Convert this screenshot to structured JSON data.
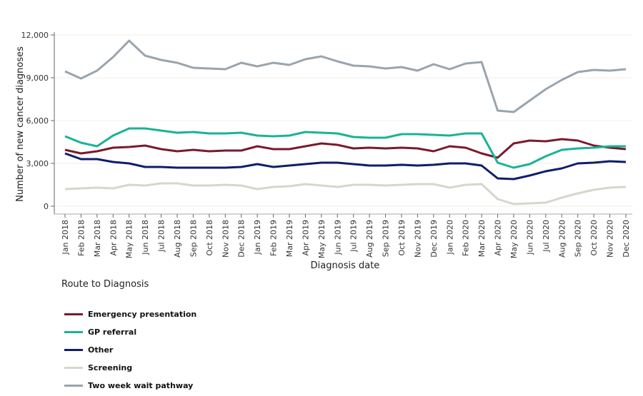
{
  "chart_data": {
    "type": "line",
    "xlabel": "Diagnosis date",
    "ylabel": "Number of new cancer diagnoses",
    "ylim": [
      0,
      12000
    ],
    "yticks": [
      "0",
      "3,000",
      "6,000",
      "9,000",
      "12,000"
    ],
    "grid": true,
    "legend_title": "Route to Diagnosis",
    "legend_position": "bottom-left",
    "x": [
      "Jan 2018",
      "Feb 2018",
      "Mar 2018",
      "Apr 2018",
      "May 2018",
      "Jun 2018",
      "Jul 2018",
      "Aug 2018",
      "Sep 2018",
      "Oct 2018",
      "Nov 2018",
      "Dec 2018",
      "Jan 2019",
      "Feb 2019",
      "Mar 2019",
      "Apr 2019",
      "May 2019",
      "Jun 2019",
      "Jul 2019",
      "Aug 2019",
      "Sep 2019",
      "Oct 2019",
      "Nov 2019",
      "Dec 2019",
      "Jan 2020",
      "Feb 2020",
      "Mar 2020",
      "Apr 2020",
      "May 2020",
      "Jun 2020",
      "Jul 2020",
      "Aug 2020",
      "Sep 2020",
      "Oct 2020",
      "Nov 2020",
      "Dec 2020"
    ],
    "series": [
      {
        "name": "Emergency presentation",
        "color": "#7a1a2c",
        "values": [
          3950,
          3700,
          3850,
          4100,
          4150,
          4250,
          4000,
          3850,
          3950,
          3850,
          3900,
          3900,
          4200,
          4000,
          4000,
          4200,
          4400,
          4300,
          4050,
          4100,
          4050,
          4100,
          4050,
          3850,
          4200,
          4100,
          3700,
          3400,
          4400,
          4600,
          4550,
          4700,
          4600,
          4250,
          4100,
          4000
        ]
      },
      {
        "name": "GP referral",
        "color": "#1ab394",
        "values": [
          4900,
          4450,
          4200,
          4950,
          5450,
          5450,
          5300,
          5150,
          5200,
          5100,
          5100,
          5150,
          4950,
          4900,
          4950,
          5200,
          5150,
          5100,
          4850,
          4800,
          4800,
          5050,
          5050,
          5000,
          4950,
          5100,
          5100,
          3050,
          2700,
          2950,
          3500,
          3950,
          4050,
          4100,
          4200,
          4200
        ]
      },
      {
        "name": "Other",
        "color": "#0f1d6b",
        "values": [
          3700,
          3300,
          3300,
          3100,
          3000,
          2750,
          2750,
          2700,
          2700,
          2700,
          2700,
          2750,
          2950,
          2750,
          2850,
          2950,
          3050,
          3050,
          2950,
          2850,
          2850,
          2900,
          2850,
          2900,
          3000,
          3000,
          2850,
          1950,
          1900,
          2150,
          2450,
          2650,
          3000,
          3050,
          3150,
          3100
        ]
      },
      {
        "name": "Screening",
        "color": "#d8d5cb",
        "values": [
          1200,
          1250,
          1300,
          1250,
          1500,
          1450,
          1600,
          1600,
          1450,
          1450,
          1500,
          1450,
          1200,
          1350,
          1400,
          1550,
          1450,
          1350,
          1500,
          1500,
          1450,
          1500,
          1550,
          1550,
          1300,
          1500,
          1550,
          500,
          150,
          200,
          250,
          600,
          900,
          1150,
          1300,
          1350
        ]
      },
      {
        "name": "Two week wait pathway",
        "color": "#9aa4ad",
        "values": [
          9450,
          8950,
          9500,
          10450,
          11600,
          10550,
          10250,
          10050,
          9700,
          9650,
          9600,
          10050,
          9800,
          10050,
          9900,
          10300,
          10500,
          10150,
          9850,
          9800,
          9650,
          9750,
          9500,
          9950,
          9600,
          10000,
          10100,
          6700,
          6600,
          7400,
          8200,
          8850,
          9400,
          9550,
          9500,
          9600
        ]
      }
    ]
  }
}
